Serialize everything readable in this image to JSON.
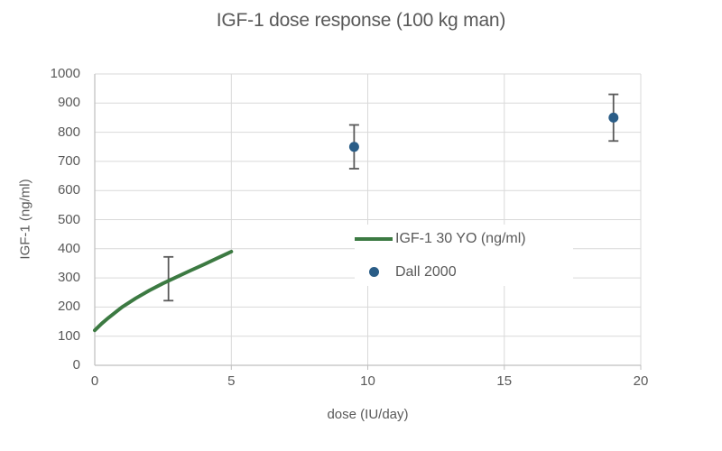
{
  "theme": {
    "text_color": "#595959",
    "gridline_color": "#d9d9d9",
    "axis_line_color": "#bfbfbf",
    "error_bar_color": "#595959",
    "background": "#ffffff"
  },
  "chart_data": {
    "type": "line+scatter",
    "title": "IGF-1 dose response (100 kg man)",
    "xlabel": "dose (IU/day)",
    "ylabel": "IGF-1 (ng/ml)",
    "xlim": [
      0,
      20
    ],
    "ylim": [
      0,
      1000
    ],
    "x_ticks": [
      0,
      5,
      10,
      15,
      20
    ],
    "y_ticks": [
      0,
      100,
      200,
      300,
      400,
      500,
      600,
      700,
      800,
      900,
      1000
    ],
    "grid": true,
    "legend": {
      "position": "inside-center",
      "entries": [
        "IGF-1 30 YO (ng/ml)",
        "Dall 2000"
      ]
    },
    "series": [
      {
        "name": "IGF-1 30 YO (ng/ml)",
        "type": "line",
        "color": "#3c7a42",
        "points": [
          [
            0,
            120
          ],
          [
            0.25,
            143
          ],
          [
            0.5,
            163
          ],
          [
            1,
            200
          ],
          [
            1.5,
            230
          ],
          [
            2,
            257
          ],
          [
            2.5,
            281
          ],
          [
            3,
            303
          ],
          [
            3.5,
            325
          ],
          [
            4,
            346
          ],
          [
            4.5,
            368
          ],
          [
            5,
            390
          ]
        ]
      },
      {
        "name": "Dall 2000",
        "type": "scatter",
        "color": "#2a5d87",
        "points": [
          {
            "x": 2.7,
            "y": 297,
            "err": 75,
            "marker": false
          },
          {
            "x": 9.5,
            "y": 750,
            "err": 75,
            "marker": true
          },
          {
            "x": 19,
            "y": 850,
            "err": 80,
            "marker": true
          }
        ]
      }
    ]
  }
}
